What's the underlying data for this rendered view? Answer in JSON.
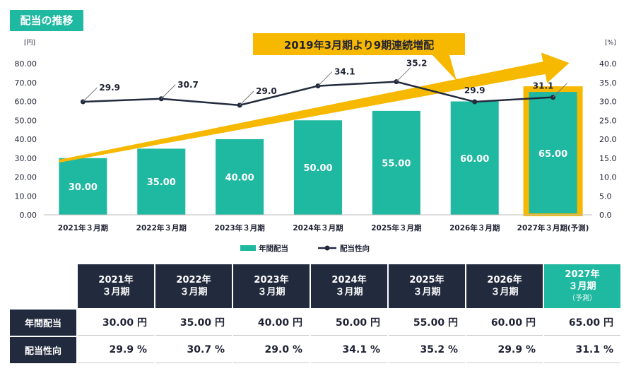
{
  "title": "配当の推移",
  "banner": "2019年3月期より9期連続増配",
  "chart_data": {
    "type": "bar",
    "categories": [
      "2021年３月期",
      "2022年３月期",
      "2023年３月期",
      "2024年３月期",
      "2025年３月期",
      "2026年３月期",
      "2027年３月期(予測)"
    ],
    "series": [
      {
        "name": "年間配当",
        "type": "bar",
        "values": [
          30.0,
          35.0,
          40.0,
          50.0,
          55.0,
          60.0,
          65.0
        ],
        "labels": [
          "30.00",
          "35.00",
          "40.00",
          "50.00",
          "55.00",
          "60.00",
          "65.00"
        ]
      },
      {
        "name": "配当性向",
        "type": "line",
        "values": [
          29.9,
          30.7,
          29.0,
          34.1,
          35.2,
          29.9,
          31.1
        ],
        "labels": [
          "29.9",
          "30.7",
          "29.0",
          "34.1",
          "35.2",
          "29.9",
          "31.1"
        ]
      }
    ],
    "ylabel_left": "[円]",
    "ylabel_right": "[%]",
    "ylim_left": [
      0,
      80
    ],
    "ylim_right": [
      0,
      40
    ],
    "yticks_left": [
      "0.00",
      "10.00",
      "20.00",
      "30.00",
      "40.00",
      "50.00",
      "60.00",
      "70.00",
      "80.00"
    ],
    "yticks_right": [
      "0.0",
      "5.0",
      "10.0",
      "15.0",
      "20.0",
      "25.0",
      "30.0",
      "35.0",
      "40.0"
    ],
    "legend_placement": "bottom",
    "highlight_index": 6,
    "colors": {
      "bar": "#1fb8a0",
      "line": "#222a3d",
      "arrow": "#f7b800",
      "highlight": "#f7b800"
    }
  },
  "table": {
    "headers": [
      {
        "main": "2021年\n３月期",
        "sub": ""
      },
      {
        "main": "2022年\n３月期",
        "sub": ""
      },
      {
        "main": "2023年\n３月期",
        "sub": ""
      },
      {
        "main": "2024年\n３月期",
        "sub": ""
      },
      {
        "main": "2025年\n３月期",
        "sub": ""
      },
      {
        "main": "2026年\n３月期",
        "sub": ""
      },
      {
        "main": "2027年\n３月期",
        "sub": "（予測）"
      }
    ],
    "rows": [
      {
        "label": "年間配当",
        "cells": [
          "30.00 円",
          "35.00 円",
          "40.00 円",
          "50.00 円",
          "55.00 円",
          "60.00 円",
          "65.00 円"
        ]
      },
      {
        "label": "配当性向",
        "cells": [
          "29.9 %",
          "30.7 %",
          "29.0 %",
          "34.1 %",
          "35.2 %",
          "29.9 %",
          "31.1 %"
        ]
      }
    ]
  }
}
